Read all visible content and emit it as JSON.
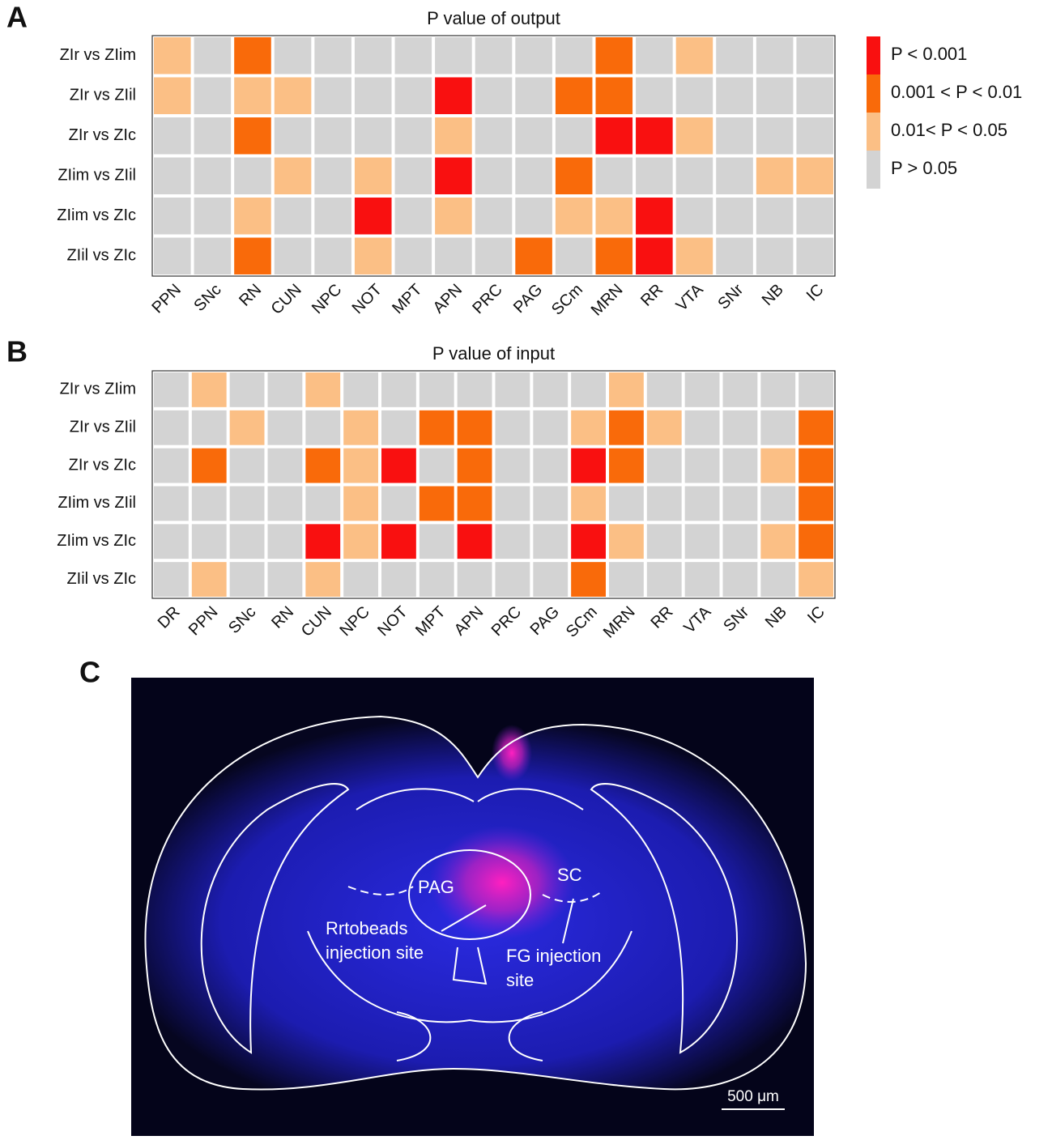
{
  "legend": [
    {
      "label": "P > 0.05",
      "color": "#d3d3d3"
    },
    {
      "label": "0.01< P < 0.05",
      "color": "#fbbf85"
    },
    {
      "label": "0.001 < P < 0.01",
      "color": "#f96a0a"
    },
    {
      "label": "P < 0.001",
      "color": "#f91010"
    }
  ],
  "chart_data": [
    {
      "type": "heatmap",
      "panel": "A",
      "title": "P value of output",
      "rows": [
        "ZIr vs ZIim",
        "ZIr vs ZIil",
        "ZIr vs ZIc",
        "ZIim vs ZIil",
        "ZIim vs ZIc",
        "ZIil vs ZIc"
      ],
      "columns": [
        "PPN",
        "SNc",
        "RN",
        "CUN",
        "NPC",
        "NOT",
        "MPT",
        "APN",
        "PRC",
        "PAG",
        "SCm",
        "MRN",
        "RR",
        "VTA",
        "SNr",
        "NB",
        "IC"
      ],
      "values": [
        [
          1,
          0,
          2,
          0,
          0,
          0,
          0,
          0,
          0,
          0,
          0,
          2,
          0,
          1,
          0,
          0,
          0
        ],
        [
          1,
          0,
          1,
          1,
          0,
          0,
          0,
          3,
          0,
          0,
          2,
          2,
          0,
          0,
          0,
          0,
          0
        ],
        [
          0,
          0,
          2,
          0,
          0,
          0,
          0,
          1,
          0,
          0,
          0,
          3,
          3,
          1,
          0,
          0,
          0
        ],
        [
          0,
          0,
          0,
          1,
          0,
          1,
          0,
          3,
          0,
          0,
          2,
          0,
          0,
          0,
          0,
          1,
          1
        ],
        [
          0,
          0,
          1,
          0,
          0,
          3,
          0,
          1,
          0,
          0,
          1,
          1,
          3,
          0,
          0,
          0,
          0
        ],
        [
          0,
          0,
          2,
          0,
          0,
          1,
          0,
          0,
          0,
          2,
          0,
          2,
          3,
          1,
          0,
          0,
          0
        ]
      ]
    },
    {
      "type": "heatmap",
      "panel": "B",
      "title": "P value of input",
      "rows": [
        "ZIr vs ZIim",
        "ZIr vs ZIil",
        "ZIr vs ZIc",
        "ZIim vs ZIil",
        "ZIim vs ZIc",
        "ZIil vs ZIc"
      ],
      "columns": [
        "DR",
        "PPN",
        "SNc",
        "RN",
        "CUN",
        "NPC",
        "NOT",
        "MPT",
        "APN",
        "PRC",
        "PAG",
        "SCm",
        "MRN",
        "RR",
        "VTA",
        "SNr",
        "NB",
        "IC"
      ],
      "values": [
        [
          0,
          1,
          0,
          0,
          1,
          0,
          0,
          0,
          0,
          0,
          0,
          0,
          1,
          0,
          0,
          0,
          0,
          0
        ],
        [
          0,
          0,
          1,
          0,
          0,
          1,
          0,
          2,
          2,
          0,
          0,
          1,
          2,
          1,
          0,
          0,
          0,
          2
        ],
        [
          0,
          2,
          0,
          0,
          2,
          1,
          3,
          0,
          2,
          0,
          0,
          3,
          2,
          0,
          0,
          0,
          1,
          2
        ],
        [
          0,
          0,
          0,
          0,
          0,
          1,
          0,
          2,
          2,
          0,
          0,
          1,
          0,
          0,
          0,
          0,
          0,
          2
        ],
        [
          0,
          0,
          0,
          0,
          3,
          1,
          3,
          0,
          3,
          0,
          0,
          3,
          1,
          0,
          0,
          0,
          1,
          2
        ],
        [
          0,
          1,
          0,
          0,
          1,
          0,
          0,
          0,
          0,
          0,
          0,
          2,
          0,
          0,
          0,
          0,
          0,
          1
        ]
      ]
    }
  ],
  "image": {
    "panel": "C",
    "pag": "PAG",
    "sc": "SC",
    "retro_label": [
      "Rrtobeads",
      "injection site"
    ],
    "fg_label": [
      "FG injection",
      "site"
    ],
    "scale_bar": "500 μm"
  }
}
